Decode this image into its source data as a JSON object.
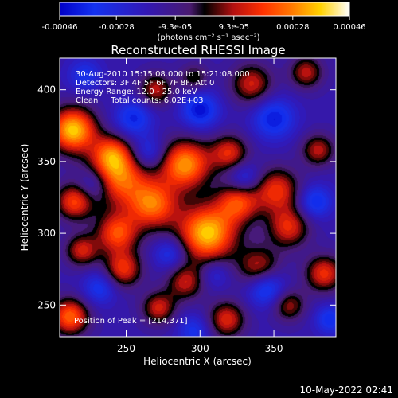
{
  "chart_data": {
    "type": "heatmap",
    "title": "Reconstructed RHESSI Image",
    "xlabel": "Heliocentric X (arcsec)",
    "ylabel": "Heliocentric Y (arcsec)",
    "xlim": [
      205,
      392
    ],
    "ylim": [
      228,
      422
    ],
    "x_ticks": [
      250,
      300,
      350
    ],
    "y_ticks": [
      250,
      300,
      350,
      400
    ],
    "colorbar": {
      "range": [
        -0.00046,
        0.00046
      ],
      "tick_values": [
        -0.00046,
        -0.00028,
        -9.3e-05,
        9.3e-05,
        0.00028,
        0.00046
      ],
      "tick_labels": [
        "-0.00046",
        "-0.00028",
        "-9.3e-05",
        "9.3e-05",
        "0.00028",
        "0.00046"
      ],
      "units_label": "(photons cm⁻² s⁻¹ asec⁻²)"
    },
    "annotations": [
      "30-Aug-2010 15:15:08.000 to 15:21:08.000",
      "Detectors: 3F 4F 5F 6F 7F 8F, Att 0",
      "Energy Range: 12.0 - 25.0 keV",
      "Clean     Total counts: 6.02E+03"
    ],
    "peak_label": "Position of Peak = [214,371]",
    "peak_position": [
      214,
      371
    ],
    "blobs": [
      {
        "x": 214,
        "y": 372,
        "r": 11,
        "v": 0.00046
      },
      {
        "x": 240,
        "y": 356,
        "r": 9,
        "v": 0.0002
      },
      {
        "x": 270,
        "y": 400,
        "r": 8,
        "v": 0.0002
      },
      {
        "x": 296,
        "y": 408,
        "r": 7,
        "v": 0.00012
      },
      {
        "x": 335,
        "y": 404,
        "r": 10,
        "v": 0.00022
      },
      {
        "x": 372,
        "y": 412,
        "r": 8,
        "v": 0.0002
      },
      {
        "x": 215,
        "y": 322,
        "r": 9,
        "v": 0.00028
      },
      {
        "x": 244,
        "y": 340,
        "r": 14,
        "v": 0.00036
      },
      {
        "x": 290,
        "y": 348,
        "r": 12,
        "v": 0.0004
      },
      {
        "x": 320,
        "y": 356,
        "r": 9,
        "v": 0.00024
      },
      {
        "x": 352,
        "y": 330,
        "r": 11,
        "v": 0.00026
      },
      {
        "x": 380,
        "y": 358,
        "r": 8,
        "v": 0.0002
      },
      {
        "x": 268,
        "y": 320,
        "r": 12,
        "v": 0.00034
      },
      {
        "x": 326,
        "y": 322,
        "r": 10,
        "v": 0.00028
      },
      {
        "x": 305,
        "y": 300,
        "r": 14,
        "v": 0.00046
      },
      {
        "x": 244,
        "y": 300,
        "r": 10,
        "v": 0.0003
      },
      {
        "x": 360,
        "y": 304,
        "r": 10,
        "v": 0.00024
      },
      {
        "x": 220,
        "y": 288,
        "r": 8,
        "v": 0.00022
      },
      {
        "x": 248,
        "y": 275,
        "r": 9,
        "v": 0.00026
      },
      {
        "x": 290,
        "y": 266,
        "r": 9,
        "v": 0.0002
      },
      {
        "x": 340,
        "y": 276,
        "r": 10,
        "v": 0.00022
      },
      {
        "x": 384,
        "y": 272,
        "r": 9,
        "v": 0.00026
      },
      {
        "x": 212,
        "y": 242,
        "r": 9,
        "v": 0.00034
      },
      {
        "x": 272,
        "y": 248,
        "r": 8,
        "v": 0.00022
      },
      {
        "x": 318,
        "y": 240,
        "r": 9,
        "v": 0.00024
      },
      {
        "x": 360,
        "y": 250,
        "r": 8,
        "v": 0.00018
      },
      {
        "x": 300,
        "y": 386,
        "r": 9,
        "v": -0.00034
      },
      {
        "x": 255,
        "y": 380,
        "r": 9,
        "v": -0.0003
      },
      {
        "x": 350,
        "y": 380,
        "r": 10,
        "v": -0.00032
      },
      {
        "x": 265,
        "y": 356,
        "r": 8,
        "v": -0.00026
      },
      {
        "x": 228,
        "y": 334,
        "r": 8,
        "v": -0.00028
      },
      {
        "x": 330,
        "y": 338,
        "r": 8,
        "v": -0.00026
      },
      {
        "x": 280,
        "y": 286,
        "r": 8,
        "v": -0.00026
      },
      {
        "x": 378,
        "y": 322,
        "r": 8,
        "v": -0.0003
      },
      {
        "x": 345,
        "y": 262,
        "r": 9,
        "v": -0.00034
      },
      {
        "x": 232,
        "y": 262,
        "r": 8,
        "v": -0.00026
      },
      {
        "x": 296,
        "y": 232,
        "r": 8,
        "v": -0.00024
      },
      {
        "x": 388,
        "y": 240,
        "r": 7,
        "v": -0.00028
      },
      {
        "x": 222,
        "y": 410,
        "r": 8,
        "v": -0.00024
      },
      {
        "x": 310,
        "y": 272,
        "r": 7,
        "v": -0.0002
      }
    ]
  },
  "timestamp": "10-May-2022 02:41"
}
